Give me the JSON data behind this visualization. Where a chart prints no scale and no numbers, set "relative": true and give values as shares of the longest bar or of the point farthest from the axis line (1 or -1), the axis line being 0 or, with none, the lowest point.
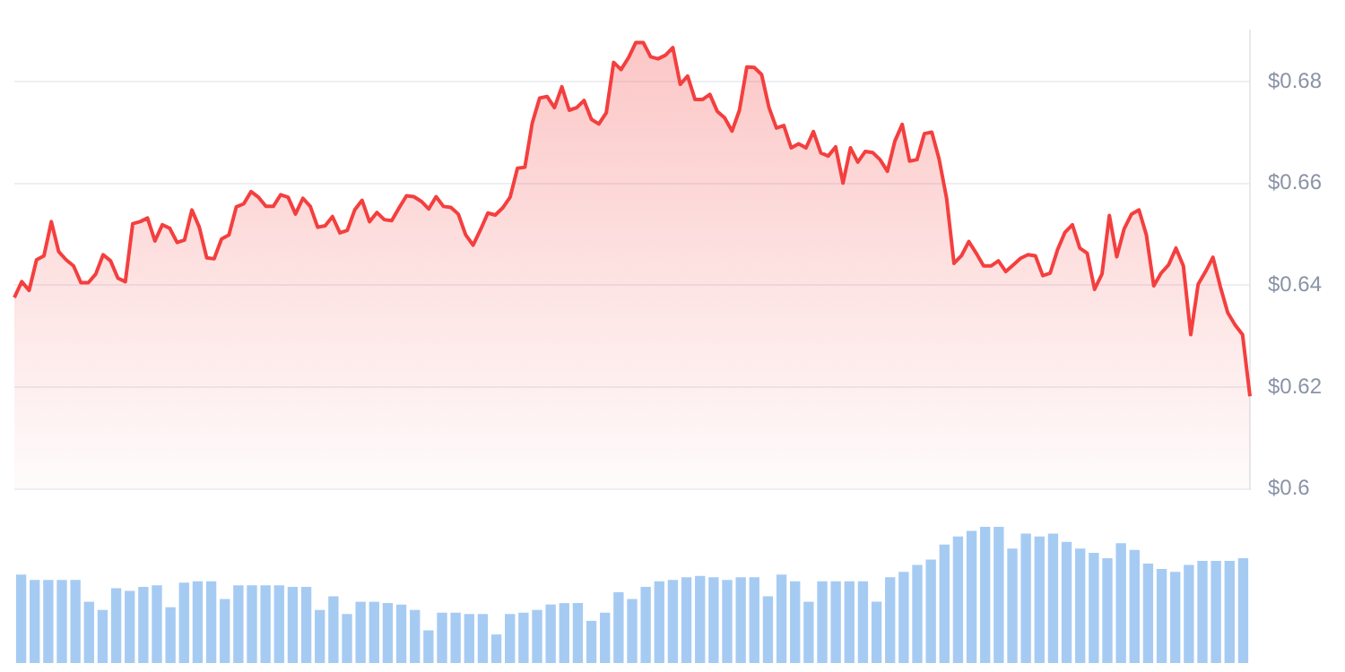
{
  "chart_data": [
    {
      "type": "area",
      "color": "#f43f3f",
      "grid": "y",
      "tick_labels": "y",
      "ylim": [
        0.6,
        0.69
      ],
      "yticks": [
        {
          "value": 0.6,
          "label": "$0.6"
        },
        {
          "value": 0.62,
          "label": "$0.62"
        },
        {
          "value": 0.64,
          "label": "$0.64"
        },
        {
          "value": 0.66,
          "label": "$0.66"
        },
        {
          "value": 0.68,
          "label": "$0.68"
        }
      ],
      "categories": [
        null,
        null,
        null,
        null,
        null,
        null,
        null,
        null,
        null,
        null,
        null,
        null,
        null,
        null,
        null,
        null,
        null,
        null,
        null,
        null,
        null,
        null,
        null,
        null,
        null,
        null,
        null,
        null,
        null,
        null,
        null,
        null,
        null,
        null,
        null,
        null,
        null,
        null,
        null,
        null,
        null,
        null,
        null,
        null,
        null,
        null,
        null,
        null,
        null,
        null,
        null,
        null,
        null,
        null,
        null,
        null,
        null,
        null,
        null,
        null,
        null,
        null,
        null,
        null,
        null,
        null,
        null,
        null,
        null,
        null,
        null,
        null,
        null,
        null,
        null,
        null,
        null,
        null,
        null,
        null,
        null,
        null,
        null,
        null,
        null,
        null,
        null,
        null,
        null,
        null,
        null,
        null,
        null,
        null,
        null,
        null,
        null,
        null,
        null,
        null,
        null,
        null,
        null,
        null,
        null,
        null,
        null,
        null,
        null,
        null,
        null,
        null,
        null,
        null,
        null,
        null,
        null,
        null,
        null,
        null,
        null,
        null,
        null,
        null,
        null,
        null,
        null,
        null,
        null,
        null,
        null,
        null,
        null,
        null,
        null,
        null,
        null,
        null,
        null,
        null,
        null,
        null,
        null,
        null,
        null,
        null,
        null,
        null,
        null,
        null,
        null,
        null,
        null,
        null,
        null,
        null,
        null,
        null,
        null,
        null,
        null,
        null,
        null,
        null,
        null,
        null,
        null,
        null
      ],
      "values": [
        0.6376,
        0.6407,
        0.639,
        0.645,
        0.6458,
        0.6525,
        0.6466,
        0.645,
        0.6438,
        0.6405,
        0.6405,
        0.6422,
        0.646,
        0.6448,
        0.6414,
        0.6407,
        0.6521,
        0.6525,
        0.6532,
        0.6487,
        0.6519,
        0.6512,
        0.6484,
        0.6489,
        0.6548,
        0.6514,
        0.6454,
        0.6452,
        0.6491,
        0.6499,
        0.6554,
        0.656,
        0.6584,
        0.6573,
        0.6555,
        0.6555,
        0.6578,
        0.6573,
        0.654,
        0.6571,
        0.6555,
        0.6514,
        0.6517,
        0.6535,
        0.6503,
        0.6508,
        0.6548,
        0.6567,
        0.6525,
        0.6543,
        0.6529,
        0.6527,
        0.6552,
        0.6576,
        0.6574,
        0.6565,
        0.655,
        0.6574,
        0.6555,
        0.6553,
        0.654,
        0.6499,
        0.6479,
        0.6509,
        0.6542,
        0.6538,
        0.6552,
        0.6573,
        0.663,
        0.6632,
        0.6719,
        0.6768,
        0.6771,
        0.6749,
        0.679,
        0.6744,
        0.6749,
        0.6763,
        0.6726,
        0.6717,
        0.6739,
        0.6838,
        0.6824,
        0.6847,
        0.6877,
        0.6877,
        0.6849,
        0.6845,
        0.6852,
        0.6867,
        0.6795,
        0.6811,
        0.6765,
        0.6765,
        0.6775,
        0.6742,
        0.6729,
        0.6703,
        0.6744,
        0.6829,
        0.6828,
        0.6814,
        0.6749,
        0.6709,
        0.6714,
        0.667,
        0.6678,
        0.667,
        0.6702,
        0.666,
        0.6654,
        0.6672,
        0.6601,
        0.667,
        0.6642,
        0.6663,
        0.6661,
        0.6647,
        0.6624,
        0.6683,
        0.6716,
        0.6644,
        0.6647,
        0.6698,
        0.6701,
        0.6647,
        0.6571,
        0.6443,
        0.6458,
        0.6486,
        0.6463,
        0.6438,
        0.6438,
        0.6448,
        0.6427,
        0.644,
        0.6453,
        0.646,
        0.6458,
        0.6419,
        0.6424,
        0.647,
        0.6504,
        0.6519,
        0.6473,
        0.6463,
        0.6392,
        0.6422,
        0.6537,
        0.6456,
        0.6511,
        0.654,
        0.6548,
        0.6499,
        0.6399,
        0.6424,
        0.644,
        0.6473,
        0.6438,
        0.6303,
        0.6402,
        0.6427,
        0.6455,
        0.6397,
        0.6346,
        0.6322,
        0.6303,
        0.6182
      ]
    },
    {
      "type": "bar",
      "color": "#a6cbf3",
      "relative": true,
      "tick_labels": false,
      "categories": [
        null,
        null,
        null,
        null,
        null,
        null,
        null,
        null,
        null,
        null,
        null,
        null,
        null,
        null,
        null,
        null,
        null,
        null,
        null,
        null,
        null,
        null,
        null,
        null,
        null,
        null,
        null,
        null,
        null,
        null,
        null,
        null,
        null,
        null,
        null,
        null,
        null,
        null,
        null,
        null,
        null,
        null,
        null,
        null,
        null,
        null,
        null,
        null,
        null,
        null,
        null,
        null,
        null,
        null,
        null,
        null,
        null,
        null,
        null,
        null,
        null,
        null,
        null,
        null,
        null,
        null,
        null,
        null,
        null,
        null,
        null,
        null,
        null,
        null,
        null,
        null,
        null,
        null,
        null,
        null,
        null,
        null,
        null,
        null,
        null,
        null,
        null,
        null,
        null,
        null,
        null
      ],
      "values": [
        0.65,
        0.61,
        0.61,
        0.61,
        0.61,
        0.45,
        0.39,
        0.55,
        0.53,
        0.56,
        0.57,
        0.41,
        0.59,
        0.6,
        0.6,
        0.47,
        0.57,
        0.57,
        0.57,
        0.57,
        0.56,
        0.56,
        0.39,
        0.49,
        0.36,
        0.45,
        0.45,
        0.44,
        0.43,
        0.39,
        0.24,
        0.37,
        0.37,
        0.36,
        0.36,
        0.21,
        0.36,
        0.37,
        0.39,
        0.43,
        0.44,
        0.44,
        0.31,
        0.37,
        0.52,
        0.47,
        0.56,
        0.6,
        0.61,
        0.63,
        0.64,
        0.63,
        0.61,
        0.63,
        0.63,
        0.49,
        0.65,
        0.6,
        0.45,
        0.6,
        0.6,
        0.6,
        0.6,
        0.45,
        0.63,
        0.67,
        0.72,
        0.76,
        0.87,
        0.93,
        0.97,
        1,
        1,
        0.84,
        0.95,
        0.93,
        0.95,
        0.89,
        0.84,
        0.81,
        0.77,
        0.88,
        0.83,
        0.73,
        0.69,
        0.67,
        0.72,
        0.75,
        0.75,
        0.75,
        0.77
      ]
    }
  ]
}
